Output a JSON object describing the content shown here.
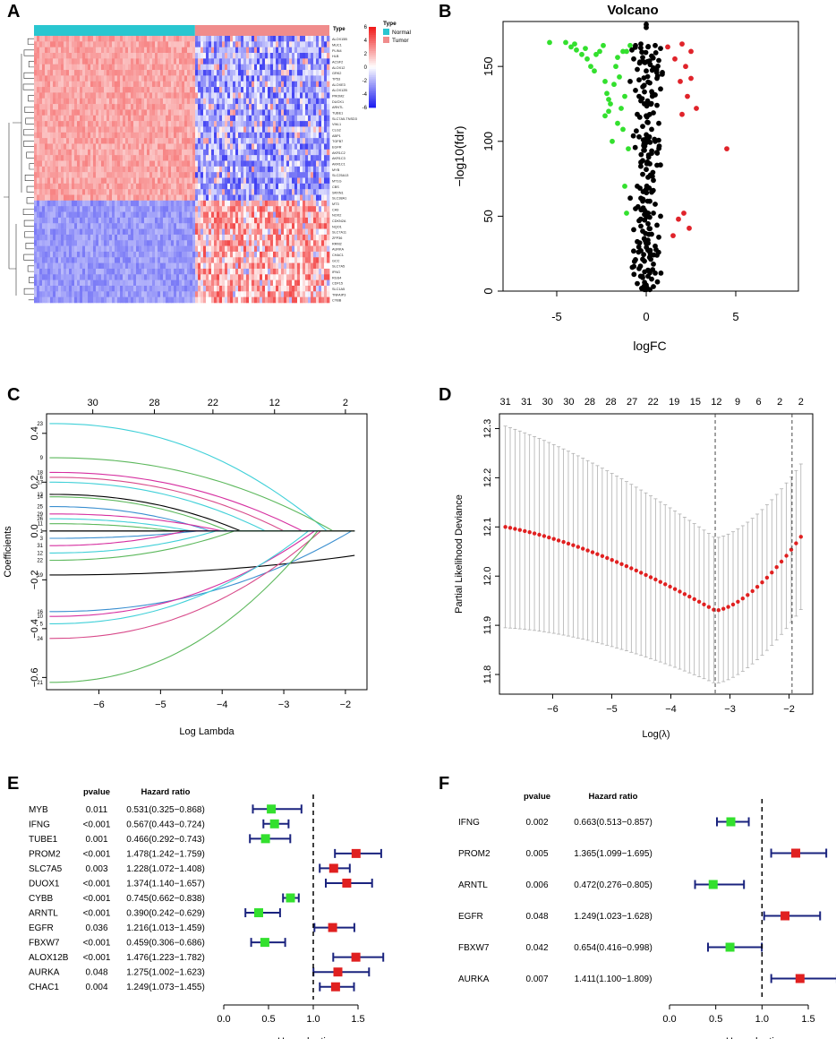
{
  "panel_labels": [
    "A",
    "B",
    "C",
    "D",
    "E",
    "F"
  ],
  "chart_data": [
    {
      "panel": "A",
      "type": "heatmap",
      "legend_title": "Type",
      "groups": [
        "Normal",
        "Tumor"
      ],
      "group_colors": [
        "#29c6d0",
        "#f08c8c"
      ],
      "color_scale": {
        "min": -6,
        "max": 6,
        "ticks": [
          6,
          4,
          2,
          0,
          -2,
          -4,
          -6
        ],
        "low": "#1f1ff0",
        "mid": "#ffffff",
        "high": "#f01c1c"
      },
      "upregulated_in_normal_rows": 20,
      "upregulated_in_tumor_rows": 12,
      "gene_rows": [
        "ALOX15B",
        "MUC1",
        "PLIN4",
        "HLB",
        "ACSF2",
        "ALOX12",
        "GRK2",
        "TP53",
        "ALOXE3",
        "ALOX12B",
        "PROM2",
        "DUOX1",
        "ARNTL",
        "TUBE1",
        "SLC7A5-TNSD3",
        "VIM-1",
        "CLG2",
        "ABP1",
        "TGFB7",
        "EGFR",
        "AKR1C2",
        "AKR1C3",
        "AKR1C1",
        "MYB",
        "SLC25A13",
        "MT1G",
        "CBS",
        "SRXN1",
        "SLC38A1",
        "MT3",
        "CA9",
        "NOX2",
        "CDKN2A",
        "NQO1",
        "SLC7A11",
        "ZFP36",
        "RRM2",
        "AURKA",
        "CHAC1",
        "GCC",
        "SLC7A5",
        "IFNG",
        "RGS4",
        "CDF15",
        "SLC1A5",
        "TNFAIP3",
        "CYBB"
      ]
    },
    {
      "panel": "B",
      "type": "scatter",
      "title": "Volcano",
      "xlabel": "logFC",
      "ylabel": "−log10(fdr)",
      "xlim": [
        -8,
        8.5
      ],
      "ylim": [
        0,
        180
      ],
      "xticks": [
        -5,
        0,
        5
      ],
      "yticks": [
        0,
        50,
        100,
        150
      ],
      "series": [
        {
          "name": "down",
          "color": "#33e02e",
          "points": [
            [
              -5.4,
              166
            ],
            [
              -4.5,
              166
            ],
            [
              -4.2,
              163
            ],
            [
              -4.0,
              165
            ],
            [
              -3.9,
              161
            ],
            [
              -3.6,
              158
            ],
            [
              -3.4,
              162
            ],
            [
              -3.3,
              155
            ],
            [
              -3.1,
              150
            ],
            [
              -2.9,
              147
            ],
            [
              -2.8,
              158
            ],
            [
              -2.6,
              160
            ],
            [
              -2.4,
              164
            ],
            [
              -2.3,
              140
            ],
            [
              -2.2,
              132
            ],
            [
              -2.1,
              128
            ],
            [
              -2.0,
              125
            ],
            [
              -1.8,
              138
            ],
            [
              -1.7,
              150
            ],
            [
              -1.6,
              156
            ],
            [
              -1.5,
              143
            ],
            [
              -1.4,
              122
            ],
            [
              -1.3,
              108
            ],
            [
              -1.2,
              130
            ],
            [
              -1.1,
              160
            ],
            [
              -2.3,
              117
            ],
            [
              -1.9,
              100
            ],
            [
              -2.1,
              120
            ],
            [
              -1.6,
              112
            ],
            [
              -1.3,
              160
            ],
            [
              -1.2,
              70
            ],
            [
              -1.1,
              52
            ],
            [
              -1.0,
              95
            ],
            [
              -0.9,
              164
            ]
          ]
        },
        {
          "name": "up",
          "color": "#e0232a",
          "points": [
            [
              1.2,
              163
            ],
            [
              2.0,
              165
            ],
            [
              2.5,
              160
            ],
            [
              1.6,
              155
            ],
            [
              2.2,
              150
            ],
            [
              1.9,
              140
            ],
            [
              2.5,
              142
            ],
            [
              2.3,
              130
            ],
            [
              2.8,
              122
            ],
            [
              2.0,
              118
            ],
            [
              4.5,
              95
            ],
            [
              2.1,
              52
            ],
            [
              1.8,
              48
            ],
            [
              2.4,
              42
            ],
            [
              1.5,
              37
            ]
          ]
        },
        {
          "name": "ns",
          "color": "#000000",
          "points": [
            [
              -0.8,
              161
            ],
            [
              -0.6,
              164
            ],
            [
              -0.3,
              165
            ],
            [
              0.1,
              163
            ],
            [
              0.5,
              164
            ],
            [
              0.8,
              162
            ],
            [
              -0.7,
              155
            ],
            [
              -0.2,
              156
            ],
            [
              0.3,
              157
            ],
            [
              0.7,
              154
            ],
            [
              -0.5,
              148
            ],
            [
              0.0,
              147
            ],
            [
              0.4,
              149
            ],
            [
              0.9,
              146
            ],
            [
              -0.9,
              140
            ],
            [
              -0.4,
              141
            ],
            [
              0.2,
              139
            ],
            [
              0.6,
              142
            ],
            [
              -0.6,
              134
            ],
            [
              -0.1,
              133
            ],
            [
              0.5,
              131
            ],
            [
              0.8,
              135
            ],
            [
              -0.3,
              127
            ],
            [
              0.1,
              125
            ],
            [
              0.6,
              124
            ],
            [
              -0.5,
              118
            ],
            [
              0.0,
              117
            ],
            [
              0.4,
              119
            ],
            [
              -0.2,
              110
            ],
            [
              0.3,
              108
            ],
            [
              0.7,
              112
            ],
            [
              -0.4,
              103
            ],
            [
              0.1,
              101
            ],
            [
              0.5,
              100
            ],
            [
              -0.1,
              94
            ],
            [
              0.3,
              92
            ],
            [
              -0.3,
              86
            ],
            [
              0.2,
              85
            ],
            [
              0.6,
              84
            ],
            [
              -0.2,
              78
            ],
            [
              0.1,
              76
            ],
            [
              0.4,
              74
            ],
            [
              -0.5,
              70
            ],
            [
              0.0,
              68
            ],
            [
              0.3,
              66
            ],
            [
              -0.3,
              62
            ],
            [
              0.2,
              60
            ],
            [
              0.5,
              58
            ],
            [
              -0.6,
              55
            ],
            [
              -0.1,
              54
            ],
            [
              0.4,
              52
            ],
            [
              0.8,
              50
            ],
            [
              -0.4,
              47
            ],
            [
              0.1,
              45
            ],
            [
              0.6,
              44
            ],
            [
              -0.7,
              41
            ],
            [
              -0.2,
              40
            ],
            [
              0.3,
              38
            ],
            [
              0.7,
              36
            ],
            [
              -0.5,
              33
            ],
            [
              0.0,
              32
            ],
            [
              0.5,
              30
            ],
            [
              -0.3,
              27
            ],
            [
              0.2,
              26
            ],
            [
              0.6,
              24
            ],
            [
              -0.6,
              21
            ],
            [
              -0.1,
              20
            ],
            [
              0.4,
              18
            ],
            [
              -0.4,
              15
            ],
            [
              0.1,
              14
            ],
            [
              0.5,
              12
            ],
            [
              -0.2,
              9
            ],
            [
              0.3,
              8
            ],
            [
              -0.5,
              5
            ],
            [
              0.0,
              4
            ],
            [
              0.4,
              3
            ],
            [
              -0.1,
              1
            ],
            [
              0.2,
              1
            ],
            [
              0.0,
              178
            ],
            [
              0.0,
              176
            ]
          ]
        }
      ]
    },
    {
      "panel": "C",
      "type": "line",
      "xlabel": "Log Lambda",
      "ylabel": "Coefficients",
      "xlim": [
        -6.85,
        -1.65
      ],
      "ylim": [
        -0.65,
        0.48
      ],
      "xticks": [
        -6,
        -5,
        -4,
        -3,
        -2
      ],
      "yticks": [
        -0.6,
        -0.4,
        -0.2,
        0.0,
        0.2,
        0.4
      ],
      "top_axis_values": [
        30,
        28,
        22,
        12,
        2
      ],
      "top_axis_positions": [
        -6.1,
        -5.1,
        -4.15,
        -3.15,
        -2.0
      ],
      "paths": [
        {
          "label": "23",
          "start": 0.44,
          "zero": -2.3,
          "color": "#40d0d8"
        },
        {
          "label": "9",
          "start": 0.3,
          "zero": -2.2,
          "color": "#5cb85c"
        },
        {
          "label": "18",
          "start": 0.24,
          "zero": -2.7,
          "color": "#d62fa0"
        },
        {
          "label": "6",
          "start": 0.22,
          "zero": -3.0,
          "color": "#d84a8a"
        },
        {
          "label": "17",
          "start": 0.2,
          "zero": -3.3,
          "color": "#40d0d8"
        },
        {
          "label": "13",
          "start": 0.15,
          "zero": -3.7,
          "color": "#000000"
        },
        {
          "label": "14",
          "start": 0.14,
          "zero": -3.9,
          "color": "#5cb85c"
        },
        {
          "label": "25",
          "start": 0.1,
          "zero": -4.2,
          "color": "#3a8fd0"
        },
        {
          "label": "29",
          "start": 0.07,
          "zero": -4.0,
          "color": "#d62fa0"
        },
        {
          "label": "26",
          "start": 0.05,
          "zero": -4.5,
          "color": "#40d0d8"
        },
        {
          "label": "11",
          "start": 0.03,
          "zero": -4.8,
          "color": "#5cb85c"
        },
        {
          "label": "1",
          "start": 0.0,
          "zero": -5.5,
          "color": "#000000"
        },
        {
          "label": "3",
          "start": -0.03,
          "zero": -4.4,
          "color": "#3a8fd0"
        },
        {
          "label": "31",
          "start": -0.06,
          "zero": -4.6,
          "color": "#d62fa0"
        },
        {
          "label": "12",
          "start": -0.09,
          "zero": -4.1,
          "color": "#40d0d8"
        },
        {
          "label": "22",
          "start": -0.12,
          "zero": -3.8,
          "color": "#5cb85c"
        },
        {
          "label": "19",
          "start": -0.18,
          "end": -0.1,
          "color": "#000000"
        },
        {
          "label": "16",
          "start": -0.33,
          "zero": -1.9,
          "color": "#3a8fd0"
        },
        {
          "label": "10",
          "start": -0.35,
          "zero": -2.5,
          "color": "#d62fa0"
        },
        {
          "label": "5",
          "start": -0.38,
          "zero": -2.6,
          "color": "#40d0d8"
        },
        {
          "label": "24",
          "start": -0.44,
          "zero": -2.4,
          "color": "#d84a8a"
        },
        {
          "label": "21",
          "start": -0.62,
          "zero": -2.45,
          "color": "#5cb85c"
        }
      ]
    },
    {
      "panel": "D",
      "type": "line",
      "xlabel": "Log(λ)",
      "ylabel": "Partial Likelihood Deviance",
      "xlim": [
        -6.9,
        -1.6
      ],
      "ylim": [
        11.76,
        12.33
      ],
      "xticks": [
        -6,
        -5,
        -4,
        -3,
        -2
      ],
      "yticks": [
        11.8,
        11.9,
        12.0,
        12.1,
        12.2,
        12.3
      ],
      "top_axis_values": [
        31,
        31,
        30,
        30,
        28,
        28,
        27,
        22,
        19,
        15,
        12,
        9,
        6,
        2,
        2
      ],
      "vlines": [
        -3.25,
        -1.95
      ],
      "curve": {
        "x_start": -6.8,
        "x_end": -1.8,
        "n": 62,
        "y_start": 12.1,
        "y_min": 11.93,
        "x_min": -3.25,
        "y_end": 12.08
      },
      "error_bar": {
        "lower_start": 11.895,
        "upper_start": 12.305,
        "half_width_min": 0.148
      }
    },
    {
      "panel": "E",
      "type": "scatter",
      "subtype": "forest",
      "header_pvalue": "pvalue",
      "header_hr": "Hazard ratio",
      "xlabel": "Hazard ratio",
      "xlim": [
        0,
        1.9
      ],
      "xticks": [
        "0.0",
        "0.5",
        "1.0",
        "1.5"
      ],
      "reference": 1.0,
      "rows": [
        {
          "gene": "MYB",
          "pvalue": "0.011",
          "hr_text": "0.531(0.325−0.868)",
          "hr": 0.531,
          "lo": 0.325,
          "hi": 0.868
        },
        {
          "gene": "IFNG",
          "pvalue": "<0.001",
          "hr_text": "0.567(0.443−0.724)",
          "hr": 0.567,
          "lo": 0.443,
          "hi": 0.724
        },
        {
          "gene": "TUBE1",
          "pvalue": "0.001",
          "hr_text": "0.466(0.292−0.743)",
          "hr": 0.466,
          "lo": 0.292,
          "hi": 0.743
        },
        {
          "gene": "PROM2",
          "pvalue": "<0.001",
          "hr_text": "1.478(1.242−1.759)",
          "hr": 1.478,
          "lo": 1.242,
          "hi": 1.759
        },
        {
          "gene": "SLC7A5",
          "pvalue": "0.003",
          "hr_text": "1.228(1.072−1.408)",
          "hr": 1.228,
          "lo": 1.072,
          "hi": 1.408
        },
        {
          "gene": "DUOX1",
          "pvalue": "<0.001",
          "hr_text": "1.374(1.140−1.657)",
          "hr": 1.374,
          "lo": 1.14,
          "hi": 1.657
        },
        {
          "gene": "CYBB",
          "pvalue": "<0.001",
          "hr_text": "0.745(0.662−0.838)",
          "hr": 0.745,
          "lo": 0.662,
          "hi": 0.838
        },
        {
          "gene": "ARNTL",
          "pvalue": "<0.001",
          "hr_text": "0.390(0.242−0.629)",
          "hr": 0.39,
          "lo": 0.242,
          "hi": 0.629
        },
        {
          "gene": "EGFR",
          "pvalue": "0.036",
          "hr_text": "1.216(1.013−1.459)",
          "hr": 1.216,
          "lo": 1.013,
          "hi": 1.459
        },
        {
          "gene": "FBXW7",
          "pvalue": "<0.001",
          "hr_text": "0.459(0.306−0.686)",
          "hr": 0.459,
          "lo": 0.306,
          "hi": 0.686
        },
        {
          "gene": "ALOX12B",
          "pvalue": "<0.001",
          "hr_text": "1.476(1.223−1.782)",
          "hr": 1.476,
          "lo": 1.223,
          "hi": 1.782
        },
        {
          "gene": "AURKA",
          "pvalue": "0.048",
          "hr_text": "1.275(1.002−1.623)",
          "hr": 1.275,
          "lo": 1.002,
          "hi": 1.623
        },
        {
          "gene": "CHAC1",
          "pvalue": "0.004",
          "hr_text": "1.249(1.073−1.455)",
          "hr": 1.249,
          "lo": 1.073,
          "hi": 1.455
        }
      ]
    },
    {
      "panel": "F",
      "type": "scatter",
      "subtype": "forest",
      "header_pvalue": "pvalue",
      "header_hr": "Hazard ratio",
      "xlabel": "Hazard ratio",
      "xlim": [
        0,
        1.8
      ],
      "xticks": [
        "0.0",
        "0.5",
        "1.0",
        "1.5"
      ],
      "reference": 1.0,
      "rows": [
        {
          "gene": "IFNG",
          "pvalue": "0.002",
          "hr_text": "0.663(0.513−0.857)",
          "hr": 0.663,
          "lo": 0.513,
          "hi": 0.857
        },
        {
          "gene": "PROM2",
          "pvalue": "0.005",
          "hr_text": "1.365(1.099−1.695)",
          "hr": 1.365,
          "lo": 1.099,
          "hi": 1.695
        },
        {
          "gene": "ARNTL",
          "pvalue": "0.006",
          "hr_text": "0.472(0.276−0.805)",
          "hr": 0.472,
          "lo": 0.276,
          "hi": 0.805
        },
        {
          "gene": "EGFR",
          "pvalue": "0.048",
          "hr_text": "1.249(1.023−1.628)",
          "hr": 1.249,
          "lo": 1.023,
          "hi": 1.628
        },
        {
          "gene": "FBXW7",
          "pvalue": "0.042",
          "hr_text": "0.654(0.416−0.998)",
          "hr": 0.654,
          "lo": 0.416,
          "hi": 0.998
        },
        {
          "gene": "AURKA",
          "pvalue": "0.007",
          "hr_text": "1.411(1.100−1.809)",
          "hr": 1.411,
          "lo": 1.1,
          "hi": 1.809
        }
      ]
    }
  ]
}
